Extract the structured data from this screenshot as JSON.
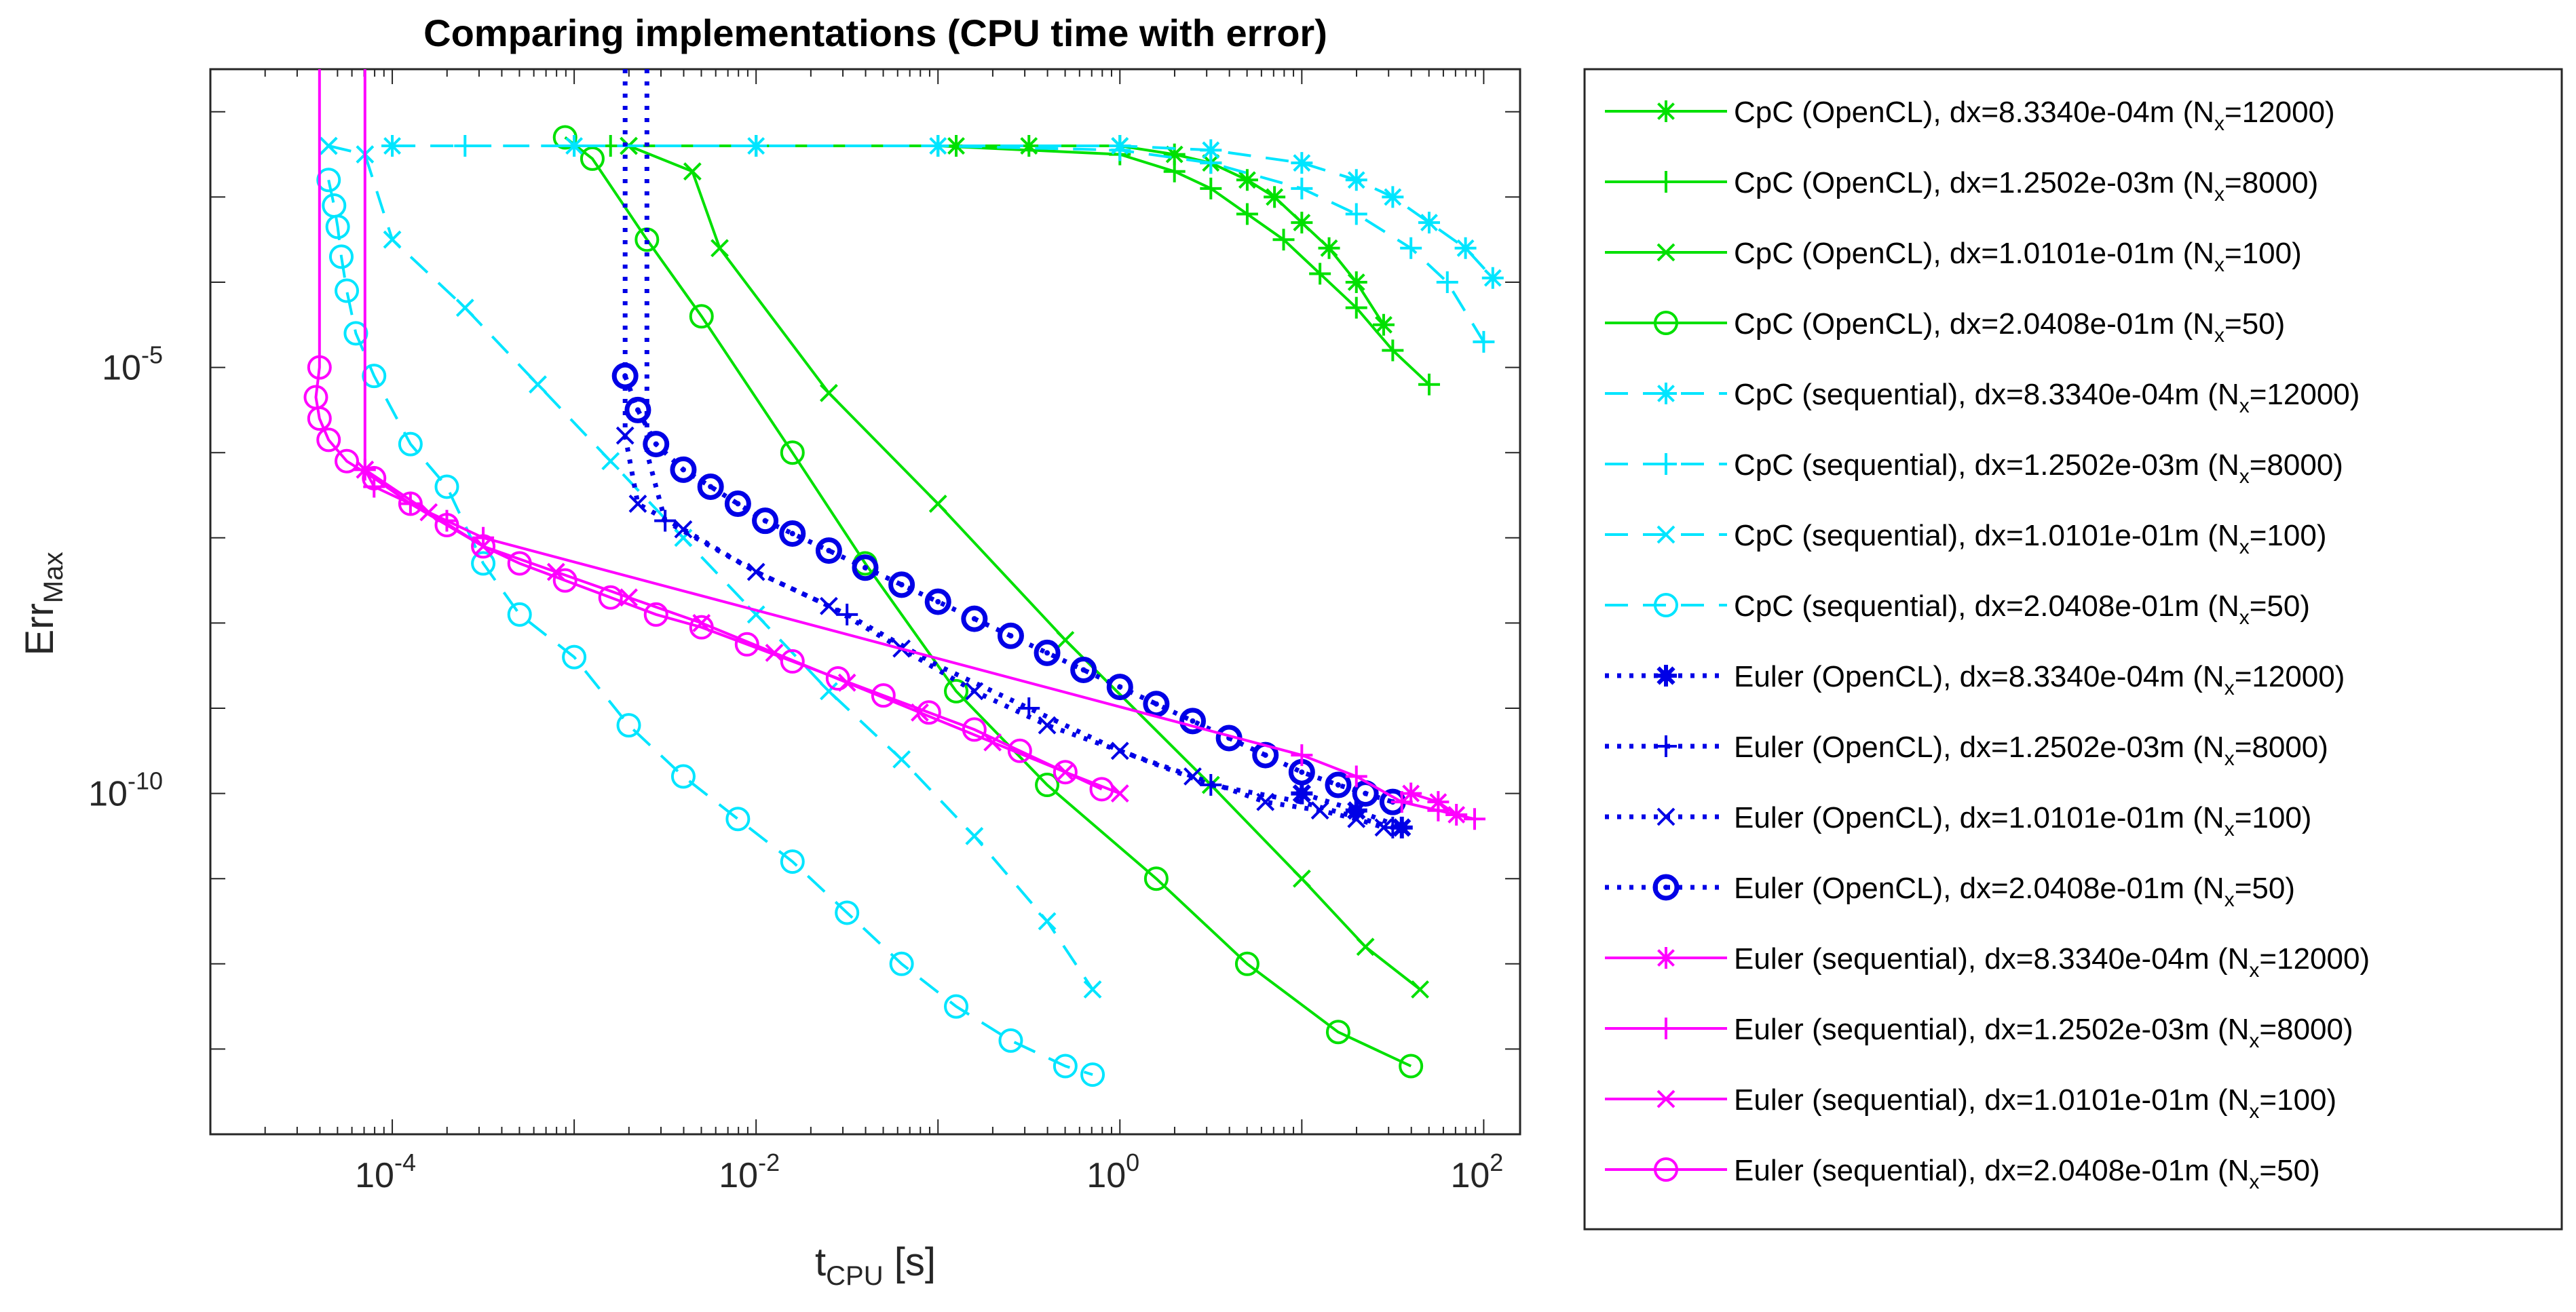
{
  "chart_data": {
    "type": "line",
    "title": "Comparing implementations (CPU time with error)",
    "xlabel": {
      "main": "t",
      "sub": "CPU",
      "unit": " [s]"
    },
    "ylabel": {
      "main": "Err",
      "sub": "Max"
    },
    "xscale": "log",
    "yscale": "log",
    "xlim_log10": [
      -5.0,
      2.2
    ],
    "ylim_log10": [
      -14,
      -1.5
    ],
    "xticks": [
      {
        "log": -4,
        "base": "10",
        "exp": "-4"
      },
      {
        "log": -2,
        "base": "10",
        "exp": "-2"
      },
      {
        "log": 0,
        "base": "10",
        "exp": "0"
      },
      {
        "log": 2,
        "base": "10",
        "exp": "2"
      }
    ],
    "yticks": [
      {
        "log": -5,
        "base": "10",
        "exp": "-5"
      },
      {
        "log": -10,
        "base": "10",
        "exp": "-10"
      }
    ],
    "legend_position": "outside-right",
    "colors": {
      "green": "#00e000",
      "cyan": "#00e5ff",
      "blue": "#0000e6",
      "magenta": "#ff00ff"
    },
    "series": [
      {
        "name": "CpC (OpenCL), dx=8.3340e-04m (N_x=12000)",
        "label_pre": "CpC (OpenCL), dx=8.3340e-04m (N",
        "label_post": "=12000)",
        "color": "green",
        "dash": "solid",
        "marker": "asterisk",
        "points_log": [
          [
            -0.9,
            -2.4
          ],
          [
            -0.5,
            -2.4
          ],
          [
            0,
            -2.4
          ],
          [
            0.3,
            -2.5
          ],
          [
            0.5,
            -2.6
          ],
          [
            0.7,
            -2.8
          ],
          [
            0.85,
            -3.0
          ],
          [
            1.0,
            -3.3
          ],
          [
            1.15,
            -3.6
          ],
          [
            1.3,
            -4.0
          ],
          [
            1.45,
            -4.5
          ]
        ],
        "mark_every": 1
      },
      {
        "name": "CpC (OpenCL), dx=1.2502e-03m (N_x=8000)",
        "label_pre": "CpC (OpenCL), dx=1.2502e-03m (N",
        "label_post": "=8000)",
        "color": "green",
        "dash": "solid",
        "marker": "plus",
        "points_log": [
          [
            -2.8,
            -2.4
          ],
          [
            -2.0,
            -2.4
          ],
          [
            -1.0,
            -2.4
          ],
          [
            0,
            -2.5
          ],
          [
            0.3,
            -2.7
          ],
          [
            0.5,
            -2.9
          ],
          [
            0.7,
            -3.2
          ],
          [
            0.9,
            -3.5
          ],
          [
            1.1,
            -3.9
          ],
          [
            1.3,
            -4.3
          ],
          [
            1.5,
            -4.8
          ],
          [
            1.7,
            -5.2
          ]
        ],
        "mark_every": 1
      },
      {
        "name": "CpC (OpenCL), dx=1.0101e-01m (N_x=100)",
        "label_pre": "CpC (OpenCL), dx=1.0101e-01m (N",
        "label_post": "=100)",
        "color": "green",
        "dash": "solid",
        "marker": "x",
        "points_log": [
          [
            -2.7,
            -2.4
          ],
          [
            -2.35,
            -2.7
          ],
          [
            -2.2,
            -3.6
          ],
          [
            -1.6,
            -5.3
          ],
          [
            -1.0,
            -6.6
          ],
          [
            -0.3,
            -8.2
          ],
          [
            0.5,
            -9.9
          ],
          [
            1.0,
            -11.0
          ],
          [
            1.35,
            -11.8
          ],
          [
            1.65,
            -12.3
          ]
        ],
        "mark_every": 1
      },
      {
        "name": "CpC (OpenCL), dx=2.0408e-01m (N_x=50)",
        "label_pre": "CpC (OpenCL), dx=2.0408e-01m (N",
        "label_post": "=50)",
        "color": "green",
        "dash": "solid",
        "marker": "circle",
        "points_log": [
          [
            -3.05,
            -2.3
          ],
          [
            -2.9,
            -2.55
          ],
          [
            -2.6,
            -3.5
          ],
          [
            -2.3,
            -4.4
          ],
          [
            -1.8,
            -6.0
          ],
          [
            -1.4,
            -7.3
          ],
          [
            -0.9,
            -8.8
          ],
          [
            -0.4,
            -9.9
          ],
          [
            0.2,
            -11.0
          ],
          [
            0.7,
            -12.0
          ],
          [
            1.2,
            -12.8
          ],
          [
            1.6,
            -13.2
          ]
        ],
        "mark_every": 1
      },
      {
        "name": "CpC (sequential), dx=8.3340e-04m (N_x=12000)",
        "label_pre": "CpC (sequential), dx=8.3340e-04m (N",
        "label_post": "=12000)",
        "color": "cyan",
        "dash": "dashed",
        "marker": "asterisk",
        "points_log": [
          [
            -4.0,
            -2.4
          ],
          [
            -3.0,
            -2.4
          ],
          [
            -2.0,
            -2.4
          ],
          [
            -1.0,
            -2.4
          ],
          [
            0,
            -2.4
          ],
          [
            0.5,
            -2.45
          ],
          [
            1.0,
            -2.6
          ],
          [
            1.3,
            -2.8
          ],
          [
            1.5,
            -3.0
          ],
          [
            1.7,
            -3.3
          ],
          [
            1.9,
            -3.6
          ],
          [
            2.05,
            -3.95
          ]
        ],
        "mark_every": 1
      },
      {
        "name": "CpC (sequential), dx=1.2502e-03m (N_x=8000)",
        "label_pre": "CpC (sequential), dx=1.2502e-03m (N",
        "label_post": "=8000)",
        "color": "cyan",
        "dash": "dashed",
        "marker": "plus",
        "points_log": [
          [
            -3.6,
            -2.4
          ],
          [
            -3.0,
            -2.4
          ],
          [
            -2.0,
            -2.4
          ],
          [
            -1.0,
            -2.4
          ],
          [
            0,
            -2.45
          ],
          [
            0.5,
            -2.6
          ],
          [
            1.0,
            -2.9
          ],
          [
            1.3,
            -3.2
          ],
          [
            1.6,
            -3.6
          ],
          [
            1.8,
            -4.0
          ],
          [
            2.0,
            -4.7
          ]
        ],
        "mark_every": 1
      },
      {
        "name": "CpC (sequential), dx=1.0101e-01m (N_x=100)",
        "label_pre": "CpC (sequential), dx=1.0101e-01m (N",
        "label_post": "=100)",
        "color": "cyan",
        "dash": "dashed",
        "marker": "x",
        "points_log": [
          [
            -4.35,
            -2.4
          ],
          [
            -4.15,
            -2.5
          ],
          [
            -4.0,
            -3.5
          ],
          [
            -3.6,
            -4.3
          ],
          [
            -3.2,
            -5.2
          ],
          [
            -2.8,
            -6.1
          ],
          [
            -2.4,
            -7.0
          ],
          [
            -2.0,
            -7.9
          ],
          [
            -1.6,
            -8.8
          ],
          [
            -1.2,
            -9.6
          ],
          [
            -0.8,
            -10.5
          ],
          [
            -0.4,
            -11.5
          ],
          [
            -0.15,
            -12.3
          ]
        ],
        "mark_every": 1
      },
      {
        "name": "CpC (sequential), dx=2.0408e-01m (N_x=50)",
        "label_pre": "CpC (sequential), dx=2.0408e-01m (N",
        "label_post": "=50)",
        "color": "cyan",
        "dash": "dashed",
        "marker": "circle",
        "points_log": [
          [
            -4.35,
            -2.8
          ],
          [
            -4.32,
            -3.1
          ],
          [
            -4.3,
            -3.35
          ],
          [
            -4.28,
            -3.7
          ],
          [
            -4.25,
            -4.1
          ],
          [
            -4.2,
            -4.6
          ],
          [
            -4.1,
            -5.1
          ],
          [
            -3.9,
            -5.9
          ],
          [
            -3.7,
            -6.4
          ],
          [
            -3.5,
            -7.3
          ],
          [
            -3.3,
            -7.9
          ],
          [
            -3.0,
            -8.4
          ],
          [
            -2.7,
            -9.2
          ],
          [
            -2.4,
            -9.8
          ],
          [
            -2.1,
            -10.3
          ],
          [
            -1.8,
            -10.8
          ],
          [
            -1.5,
            -11.4
          ],
          [
            -1.2,
            -12.0
          ],
          [
            -0.9,
            -12.5
          ],
          [
            -0.6,
            -12.9
          ],
          [
            -0.3,
            -13.2
          ],
          [
            -0.15,
            -13.3
          ]
        ],
        "mark_every": 1
      },
      {
        "name": "Euler (OpenCL), dx=8.3340e-04m (N_x=12000)",
        "label_pre": "Euler (OpenCL), dx=8.3340e-04m (N",
        "label_post": "=12000)",
        "color": "blue",
        "dash": "dotted",
        "marker": "star-filled",
        "points_log": [
          [
            1.0,
            -10.0
          ],
          [
            1.3,
            -10.2
          ],
          [
            1.55,
            -10.4
          ]
        ],
        "mark_every": 1
      },
      {
        "name": "Euler (OpenCL), dx=1.2502e-03m (N_x=8000)",
        "label_pre": "Euler (OpenCL), dx=1.2502e-03m (N",
        "label_post": "=8000)",
        "color": "blue",
        "dash": "dotted",
        "marker": "plus",
        "points_log": [
          [
            -2.6,
            -1.5
          ],
          [
            -2.6,
            -6.0
          ],
          [
            -2.5,
            -6.8
          ],
          [
            -2.0,
            -7.4
          ],
          [
            -1.5,
            -7.9
          ],
          [
            -1.0,
            -8.5
          ],
          [
            -0.5,
            -9.0
          ],
          [
            0,
            -9.5
          ],
          [
            0.5,
            -9.9
          ],
          [
            1.0,
            -10.1
          ],
          [
            1.5,
            -10.4
          ]
        ],
        "mark_every": 2
      },
      {
        "name": "Euler (OpenCL), dx=1.0101e-01m (N_x=100)",
        "label_pre": "Euler (OpenCL), dx=1.0101e-01m (N",
        "label_post": "=100)",
        "color": "blue",
        "dash": "dotted",
        "marker": "x",
        "points_log": [
          [
            -2.72,
            -1.5
          ],
          [
            -2.72,
            -5.8
          ],
          [
            -2.65,
            -6.6
          ],
          [
            -2.4,
            -6.9
          ],
          [
            -2.0,
            -7.4
          ],
          [
            -1.6,
            -7.8
          ],
          [
            -1.2,
            -8.3
          ],
          [
            -0.8,
            -8.8
          ],
          [
            -0.4,
            -9.2
          ],
          [
            0,
            -9.5
          ],
          [
            0.4,
            -9.8
          ],
          [
            0.8,
            -10.1
          ],
          [
            1.1,
            -10.2
          ],
          [
            1.3,
            -10.3
          ],
          [
            1.45,
            -10.4
          ]
        ],
        "mark_every": 1
      },
      {
        "name": "Euler (OpenCL), dx=2.0408e-01m (N_x=50)",
        "label_pre": "Euler (OpenCL), dx=2.0408e-01m (N",
        "label_post": "=50)",
        "color": "blue",
        "dash": "dotted",
        "marker": "circle-dot",
        "points_log": [
          [
            -2.72,
            -5.1
          ],
          [
            -2.65,
            -5.5
          ],
          [
            -2.55,
            -5.9
          ],
          [
            -2.4,
            -6.2
          ],
          [
            -2.25,
            -6.4
          ],
          [
            -2.1,
            -6.6
          ],
          [
            -1.95,
            -6.8
          ],
          [
            -1.8,
            -6.95
          ],
          [
            -1.6,
            -7.15
          ],
          [
            -1.4,
            -7.35
          ],
          [
            -1.2,
            -7.55
          ],
          [
            -1.0,
            -7.75
          ],
          [
            -0.8,
            -7.95
          ],
          [
            -0.6,
            -8.15
          ],
          [
            -0.4,
            -8.35
          ],
          [
            -0.2,
            -8.55
          ],
          [
            0,
            -8.75
          ],
          [
            0.2,
            -8.95
          ],
          [
            0.4,
            -9.15
          ],
          [
            0.6,
            -9.35
          ],
          [
            0.8,
            -9.55
          ],
          [
            1.0,
            -9.75
          ],
          [
            1.2,
            -9.9
          ],
          [
            1.35,
            -10.0
          ],
          [
            1.5,
            -10.1
          ]
        ],
        "mark_every": 1
      },
      {
        "name": "Euler (sequential), dx=8.3340e-04m (N_x=12000)",
        "label_pre": "Euler (sequential), dx=8.3340e-04m (N",
        "label_post": "=12000)",
        "color": "magenta",
        "dash": "solid",
        "marker": "asterisk",
        "points_log": [
          [
            1.6,
            -10.0
          ],
          [
            1.75,
            -10.1
          ],
          [
            1.85,
            -10.25
          ]
        ],
        "mark_every": 1
      },
      {
        "name": "Euler (sequential), dx=1.2502e-03m (N_x=8000)",
        "label_pre": "Euler (sequential), dx=1.2502e-03m (N",
        "label_post": "=8000)",
        "color": "magenta",
        "dash": "solid",
        "marker": "plus",
        "points_log": [
          [
            -4.15,
            -1.5
          ],
          [
            -4.15,
            -6.2
          ],
          [
            -4.1,
            -6.4
          ],
          [
            -3.9,
            -6.6
          ],
          [
            -3.7,
            -6.8
          ],
          [
            -3.5,
            -7.0
          ],
          [
            1.0,
            -9.55
          ],
          [
            1.3,
            -9.8
          ],
          [
            1.55,
            -10.1
          ],
          [
            1.75,
            -10.2
          ],
          [
            1.95,
            -10.3
          ]
        ],
        "mark_every": 1
      },
      {
        "name": "Euler (sequential), dx=1.0101e-01m (N_x=100)",
        "label_pre": "Euler (sequential), dx=1.0101e-01m (N",
        "label_post": "=100)",
        "color": "magenta",
        "dash": "solid",
        "marker": "x",
        "points_log": [
          [
            -4.15,
            -6.2
          ],
          [
            -3.8,
            -6.7
          ],
          [
            -3.5,
            -7.1
          ],
          [
            -3.1,
            -7.4
          ],
          [
            -2.7,
            -7.7
          ],
          [
            -2.3,
            -8.0
          ],
          [
            -1.9,
            -8.35
          ],
          [
            -1.5,
            -8.7
          ],
          [
            -1.1,
            -9.05
          ],
          [
            -0.7,
            -9.4
          ],
          [
            -0.3,
            -9.75
          ],
          [
            0,
            -10.0
          ]
        ],
        "mark_every": 1
      },
      {
        "name": "Euler (sequential), dx=2.0408e-01m (N_x=50)",
        "label_pre": "Euler (sequential), dx=2.0408e-01m (N",
        "label_post": "=50)",
        "color": "magenta",
        "dash": "solid",
        "marker": "circle",
        "points_log": [
          [
            -4.4,
            -1.5
          ],
          [
            -4.4,
            -5.0
          ],
          [
            -4.42,
            -5.35
          ],
          [
            -4.4,
            -5.6
          ],
          [
            -4.35,
            -5.85
          ],
          [
            -4.25,
            -6.1
          ],
          [
            -4.1,
            -6.3
          ],
          [
            -3.9,
            -6.6
          ],
          [
            -3.7,
            -6.85
          ],
          [
            -3.5,
            -7.1
          ],
          [
            -3.3,
            -7.3
          ],
          [
            -3.05,
            -7.5
          ],
          [
            -2.8,
            -7.7
          ],
          [
            -2.55,
            -7.9
          ],
          [
            -2.3,
            -8.05
          ],
          [
            -2.05,
            -8.25
          ],
          [
            -1.8,
            -8.45
          ],
          [
            -1.55,
            -8.65
          ],
          [
            -1.3,
            -8.85
          ],
          [
            -1.05,
            -9.05
          ],
          [
            -0.8,
            -9.25
          ],
          [
            -0.55,
            -9.5
          ],
          [
            -0.3,
            -9.75
          ],
          [
            -0.1,
            -9.95
          ]
        ],
        "mark_every": 1
      }
    ]
  }
}
